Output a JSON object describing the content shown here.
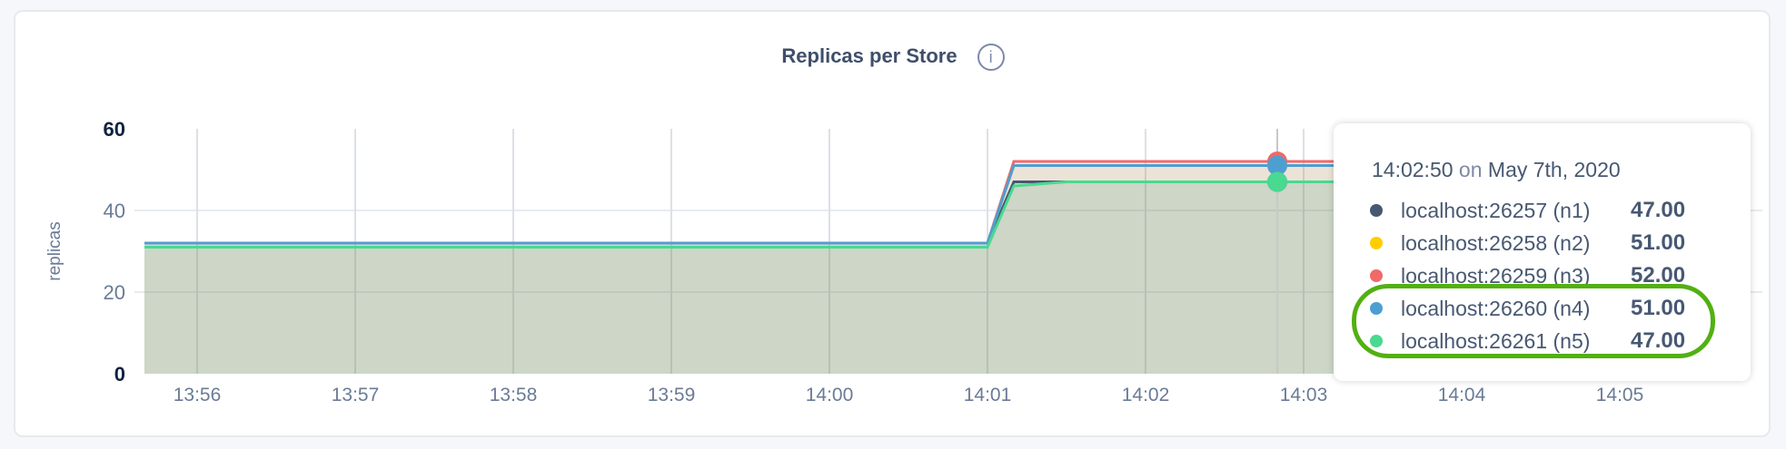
{
  "chart_data": {
    "type": "area",
    "title": "Replicas per Store",
    "ylabel": "replicas",
    "xlabel": "",
    "ylim": [
      0,
      60
    ],
    "yticks": [
      "0",
      "20",
      "40",
      "60"
    ],
    "xticks": [
      "13:56",
      "13:57",
      "13:58",
      "13:59",
      "14:00",
      "14:01",
      "14:02",
      "14:03",
      "14:04",
      "14:05"
    ],
    "xlim": [
      "13:55:40",
      "14:05:40"
    ],
    "grid": true,
    "series": [
      {
        "name": "localhost:26257 (n1)",
        "color": "#475872",
        "x": [
          "13:55:40",
          "14:01:00",
          "14:01:10",
          "14:05:40"
        ],
        "values": [
          32,
          32,
          47,
          47
        ]
      },
      {
        "name": "localhost:26258 (n2)",
        "color": "#ffcd02",
        "x": [
          "13:55:40",
          "14:01:00",
          "14:01:10",
          "14:05:40"
        ],
        "values": [
          32,
          32,
          51,
          51
        ]
      },
      {
        "name": "localhost:26259 (n3)",
        "color": "#f16969",
        "x": [
          "13:55:40",
          "14:01:00",
          "14:01:10",
          "14:05:40"
        ],
        "values": [
          32,
          32,
          52,
          52
        ]
      },
      {
        "name": "localhost:26260 (n4)",
        "color": "#4e9fd1",
        "x": [
          "13:55:40",
          "14:01:00",
          "14:01:10",
          "14:05:40"
        ],
        "values": [
          32,
          32,
          51,
          51
        ]
      },
      {
        "name": "localhost:26261 (n5)",
        "color": "#49d990",
        "x": [
          "13:55:40",
          "14:01:00",
          "14:01:10",
          "14:01:30",
          "14:05:40"
        ],
        "values": [
          31,
          31,
          46,
          47,
          47
        ]
      }
    ],
    "hover": {
      "x": "14:02:50"
    }
  },
  "info_icon": "info-circle-icon",
  "tooltip": {
    "time": "14:02:50",
    "on": "on",
    "date": "May 7th, 2020",
    "rows": [
      {
        "name": "localhost:26257 (n1)",
        "value": "47.00",
        "color": "#475872"
      },
      {
        "name": "localhost:26258 (n2)",
        "value": "51.00",
        "color": "#ffcd02"
      },
      {
        "name": "localhost:26259 (n3)",
        "value": "52.00",
        "color": "#f16969"
      },
      {
        "name": "localhost:26260 (n4)",
        "value": "51.00",
        "color": "#4e9fd1"
      },
      {
        "name": "localhost:26261 (n5)",
        "value": "47.00",
        "color": "#49d990"
      }
    ],
    "highlight_color": "#52b012"
  }
}
